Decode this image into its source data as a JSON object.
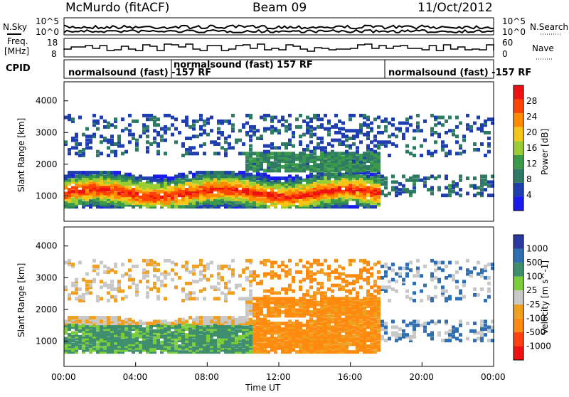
{
  "header": {
    "station": "McMurdo (fitACF)",
    "beam": "Beam 09",
    "date": "11/Oct/2012"
  },
  "side_labels": {
    "nsky": "N.Sky",
    "freq_line1": "Freq.",
    "freq_line2": "[MHz]",
    "cpid": "CPID",
    "nsearch": "N.Search",
    "nave": "Nave"
  },
  "top_strip_ticks": {
    "nsky": [
      "10^5",
      "10^0"
    ],
    "nsearch": [
      "10^5",
      "10^0"
    ],
    "freq": [
      "18",
      "8"
    ],
    "nave": [
      "60",
      "0"
    ]
  },
  "cpid_segments": [
    {
      "label": "normalsound (fast) -157 RF"
    },
    {
      "label": "normalsound (fast) 157 RF"
    },
    {
      "label": "normalsound (fast) -157 RF"
    }
  ],
  "colors": {
    "power_scale": [
      "#1a1af0",
      "#1f3fb0",
      "#2e7a63",
      "#3a9a4a",
      "#9acd32",
      "#f5c518",
      "#ff8c00",
      "#ff4500",
      "#ee1111"
    ],
    "velocity_scale": [
      "#2a3aa0",
      "#2f6fb2",
      "#3f8f6f",
      "#7ccd3a",
      "#c8c8c8",
      "#f0a020",
      "#ff8a10",
      "#ff4010",
      "#ee1111"
    ]
  },
  "chart_data": [
    {
      "type": "heatmap",
      "title": "",
      "xlabel": "Time UT",
      "ylabel": "Slant Range [km]",
      "x_ticks": [
        "00:00",
        "04:00",
        "08:00",
        "12:00",
        "16:00",
        "20:00",
        "00:00"
      ],
      "y_ticks": [
        1000,
        2000,
        3000,
        4000
      ],
      "ylim": [
        200,
        4600
      ],
      "xlim_hours": [
        0,
        24
      ],
      "colorbar": {
        "label": "Power [dB]",
        "ticks": [
          4,
          8,
          12,
          16,
          20,
          24,
          28
        ],
        "range": [
          0,
          32
        ]
      },
      "features": [
        {
          "desc": "strong scatter band",
          "time_range_h": [
            0,
            17
          ],
          "range_km": [
            600,
            1600
          ],
          "peak_power_db": 28
        },
        {
          "desc": "weak scatter",
          "time_range_h": [
            0,
            24
          ],
          "range_km": [
            2200,
            3400
          ],
          "power_db": 6
        }
      ]
    },
    {
      "type": "heatmap",
      "title": "",
      "xlabel": "Time UT",
      "ylabel": "Slant Range [km]",
      "x_ticks": [
        "00:00",
        "04:00",
        "08:00",
        "12:00",
        "16:00",
        "20:00",
        "00:00"
      ],
      "y_ticks": [
        1000,
        2000,
        3000,
        4000
      ],
      "ylim": [
        200,
        4600
      ],
      "xlim_hours": [
        0,
        24
      ],
      "colorbar": {
        "label": "Velocity [m s^-1]",
        "ticks": [
          "1000",
          "500",
          "100",
          "25",
          "-25",
          "-100",
          "-500",
          "-1000"
        ]
      },
      "features": [
        {
          "desc": "positive velocity (green)",
          "time_range_h": [
            0,
            10.5
          ],
          "range_km": [
            700,
            1400
          ]
        },
        {
          "desc": "negative velocity (orange)",
          "time_range_h": [
            10.5,
            17.5
          ],
          "range_km": [
            600,
            2200
          ]
        }
      ]
    }
  ]
}
